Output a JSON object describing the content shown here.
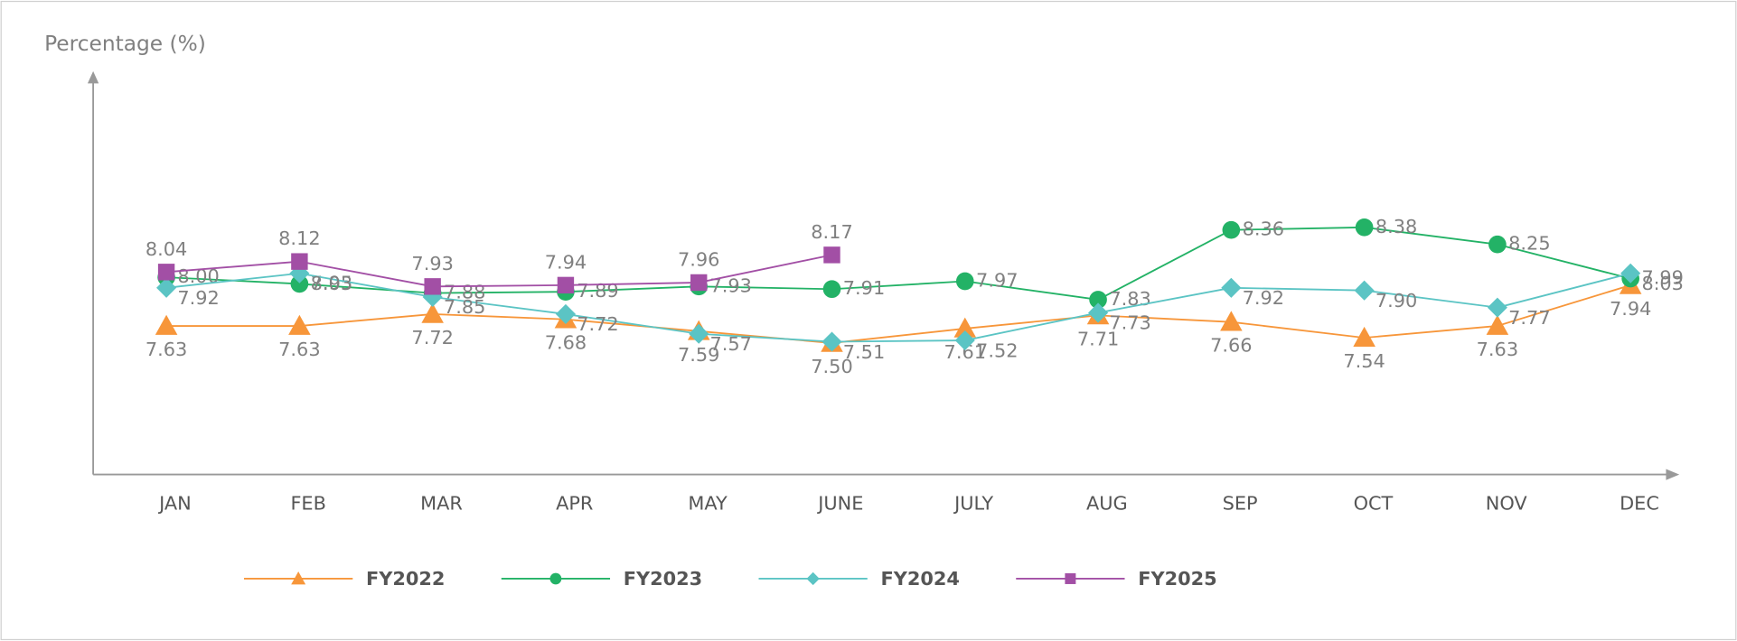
{
  "chart_data": {
    "type": "line",
    "y_label": "Percentage (%)",
    "categories": [
      "JAN",
      "FEB",
      "MAR",
      "APR",
      "MAY",
      "JUNE",
      "JULY",
      "AUG",
      "SEP",
      "OCT",
      "NOV",
      "DEC"
    ],
    "ylim": [
      6.5,
      9.5
    ],
    "series": [
      {
        "name": "FY2022",
        "color": "#f7963a",
        "marker": "triangle",
        "values": [
          7.63,
          7.63,
          7.72,
          7.68,
          7.59,
          7.5,
          7.61,
          7.71,
          7.66,
          7.54,
          7.63,
          7.94
        ]
      },
      {
        "name": "FY2023",
        "color": "#23b266",
        "marker": "circle",
        "values": [
          8.0,
          7.95,
          7.88,
          7.89,
          7.93,
          7.91,
          7.97,
          7.83,
          8.36,
          8.38,
          8.25,
          7.99
        ]
      },
      {
        "name": "FY2024",
        "color": "#5bc4c4",
        "marker": "diamond",
        "values": [
          7.92,
          8.03,
          7.85,
          7.72,
          7.57,
          7.51,
          7.52,
          7.73,
          7.92,
          7.9,
          7.77,
          8.03
        ]
      },
      {
        "name": "FY2025",
        "color": "#a24fa5",
        "marker": "square",
        "values": [
          8.04,
          8.12,
          7.93,
          7.94,
          7.96,
          8.17,
          null,
          null,
          null,
          null,
          null,
          null
        ]
      }
    ],
    "legend": "bottom"
  }
}
